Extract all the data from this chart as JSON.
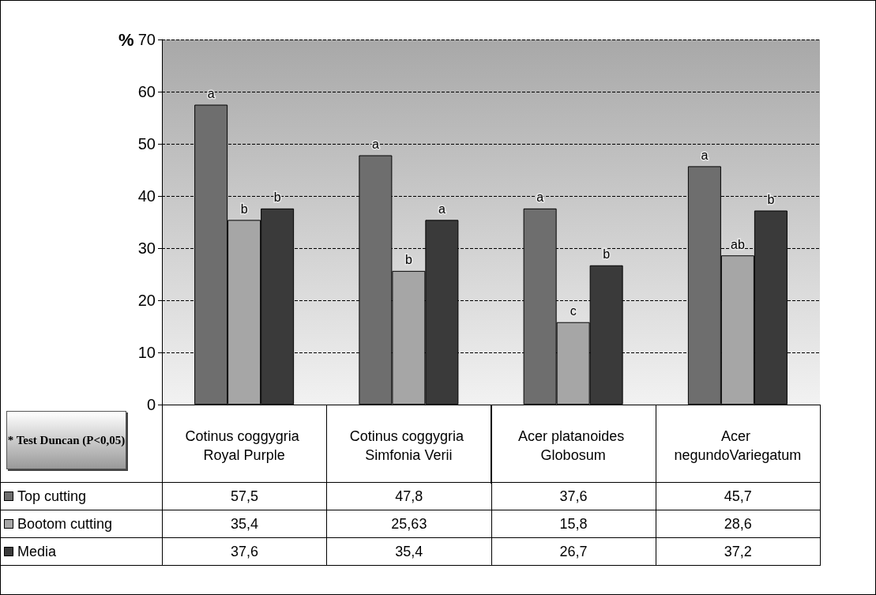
{
  "chart_data": {
    "type": "bar",
    "ylabel": "%",
    "categories": [
      "Cotinus coggygria Royal Purple",
      "Cotinus coggygria Simfonia Verii",
      "Acer platanoides Globosum",
      "Acer negundoVariegatum"
    ],
    "series": [
      {
        "name": "Top cutting",
        "color": "#6e6e6e",
        "values": [
          57.5,
          47.8,
          37.6,
          45.7
        ],
        "value_labels": [
          "57,5",
          "47,8",
          "37,6",
          "45,7"
        ]
      },
      {
        "name": "Bootom cutting",
        "color": "#a6a6a6",
        "values": [
          35.4,
          25.63,
          15.8,
          28.6
        ],
        "value_labels": [
          "35,4",
          "25,63",
          "15,8",
          "28,6"
        ]
      },
      {
        "name": "Media",
        "color": "#3a3a3a",
        "values": [
          37.6,
          35.4,
          26.7,
          37.2
        ],
        "value_labels": [
          "37,6",
          "35,4",
          "26,7",
          "37,2"
        ]
      }
    ],
    "ylim": [
      0,
      70
    ],
    "yticks": [
      0,
      10,
      20,
      30,
      40,
      50,
      60,
      70
    ],
    "grid": "y",
    "legend": "bottom",
    "annotations": [
      "* Test Duncan (P<0,05)",
      "a",
      "b",
      "b",
      "a",
      "b",
      "a",
      "a",
      "c",
      "b",
      "a",
      "ab",
      "b"
    ]
  }
}
